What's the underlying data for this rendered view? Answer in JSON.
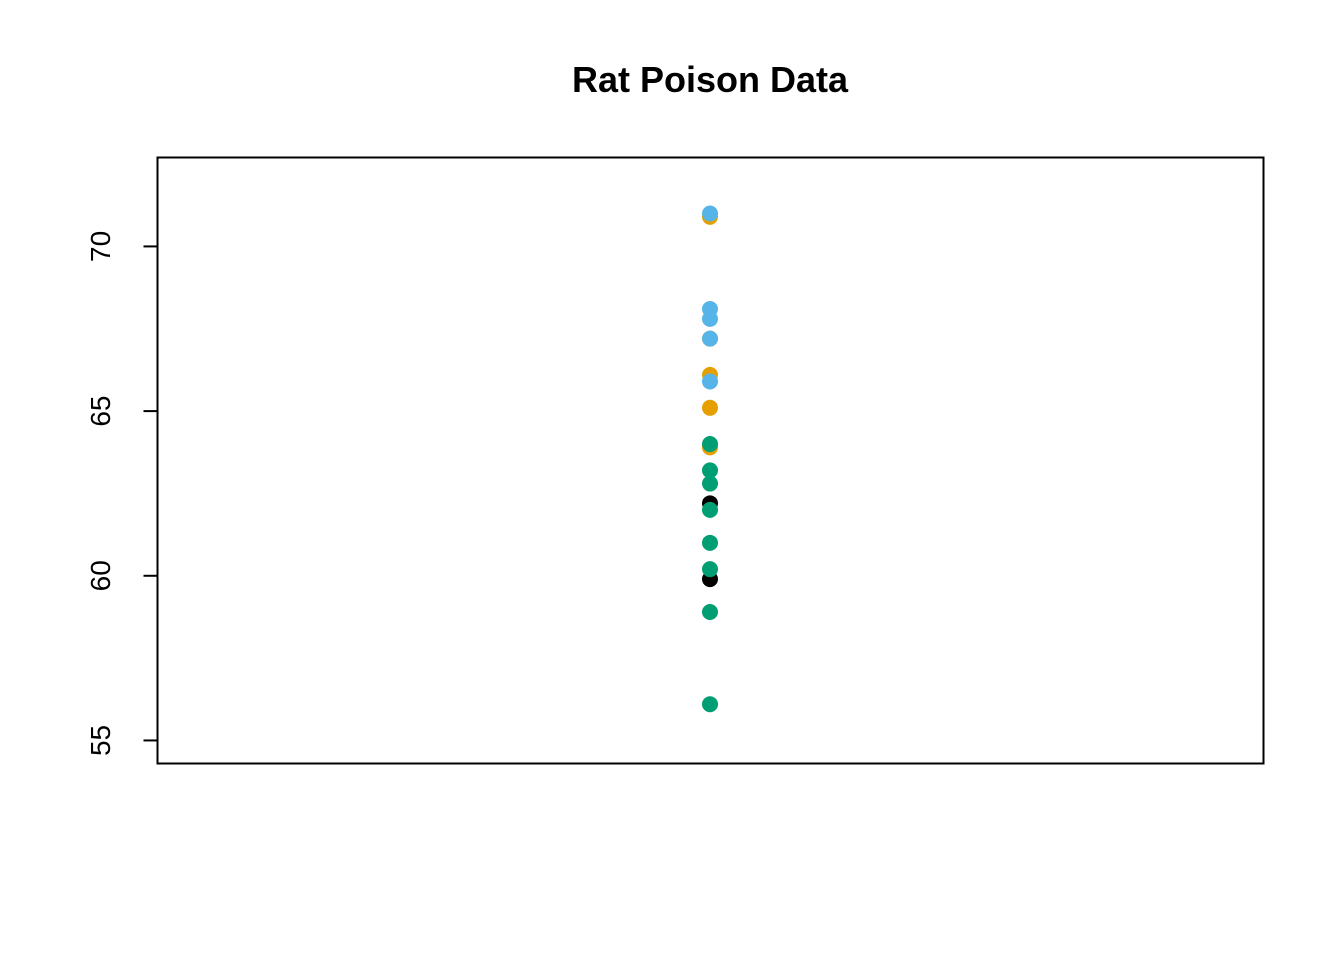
{
  "chart_data": {
    "type": "scatter",
    "title": "Rat Poison Data",
    "xlabel": "",
    "ylabel": "",
    "ylim": [
      54.3,
      72.7
    ],
    "yticks": [
      55,
      60,
      65,
      70
    ],
    "grid": false,
    "legend": "none",
    "series": [
      {
        "color": "#000000",
        "values": [
          62.2,
          59.9
        ]
      },
      {
        "color": "#E69F00",
        "values": [
          70.9,
          67.2,
          66.1,
          65.1,
          63.9
        ]
      },
      {
        "color": "#56B4E9",
        "values": [
          71.0,
          68.1,
          67.8,
          67.2,
          65.9
        ]
      },
      {
        "color": "#009E73",
        "values": [
          64.0,
          63.2,
          62.8,
          62.0,
          61.0,
          60.2,
          58.9,
          56.1
        ]
      }
    ]
  }
}
